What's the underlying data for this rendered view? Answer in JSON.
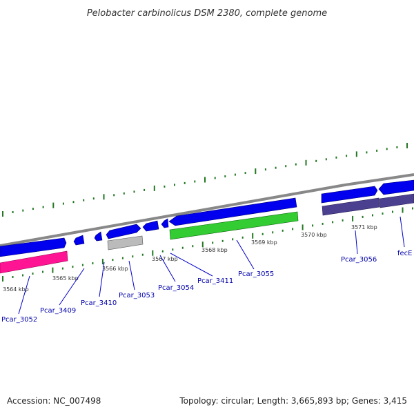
{
  "title": "Pelobacter carbinolicus DSM 2380, complete genome",
  "footer": {
    "accession": "Accession: NC_007498",
    "summary": "Topology: circular; Length: 3,665,893 bp; Genes: 3,415"
  },
  "colors": {
    "backbone": "#888888",
    "forward_strand": "#0000ee",
    "reverse_magenta": "#ff1493",
    "reverse_grey": "#bbbbbb",
    "reverse_green": "#33cc33",
    "reverse_purple": "#4b3f8f",
    "tick": "#227722",
    "label": "#0000aa"
  },
  "kbp_markers": [
    "3564 kbp",
    "3565 kbp",
    "3566 kbp",
    "3567 kbp",
    "3568 kbp",
    "3569 kbp",
    "3570 kbp",
    "3571 kbp"
  ],
  "gene_labels": [
    "Pcar_3052",
    "Pcar_3409",
    "Pcar_3410",
    "Pcar_3053",
    "Pcar_3054",
    "Pcar_3411",
    "Pcar_3055",
    "Pcar_3056",
    "fecE"
  ]
}
